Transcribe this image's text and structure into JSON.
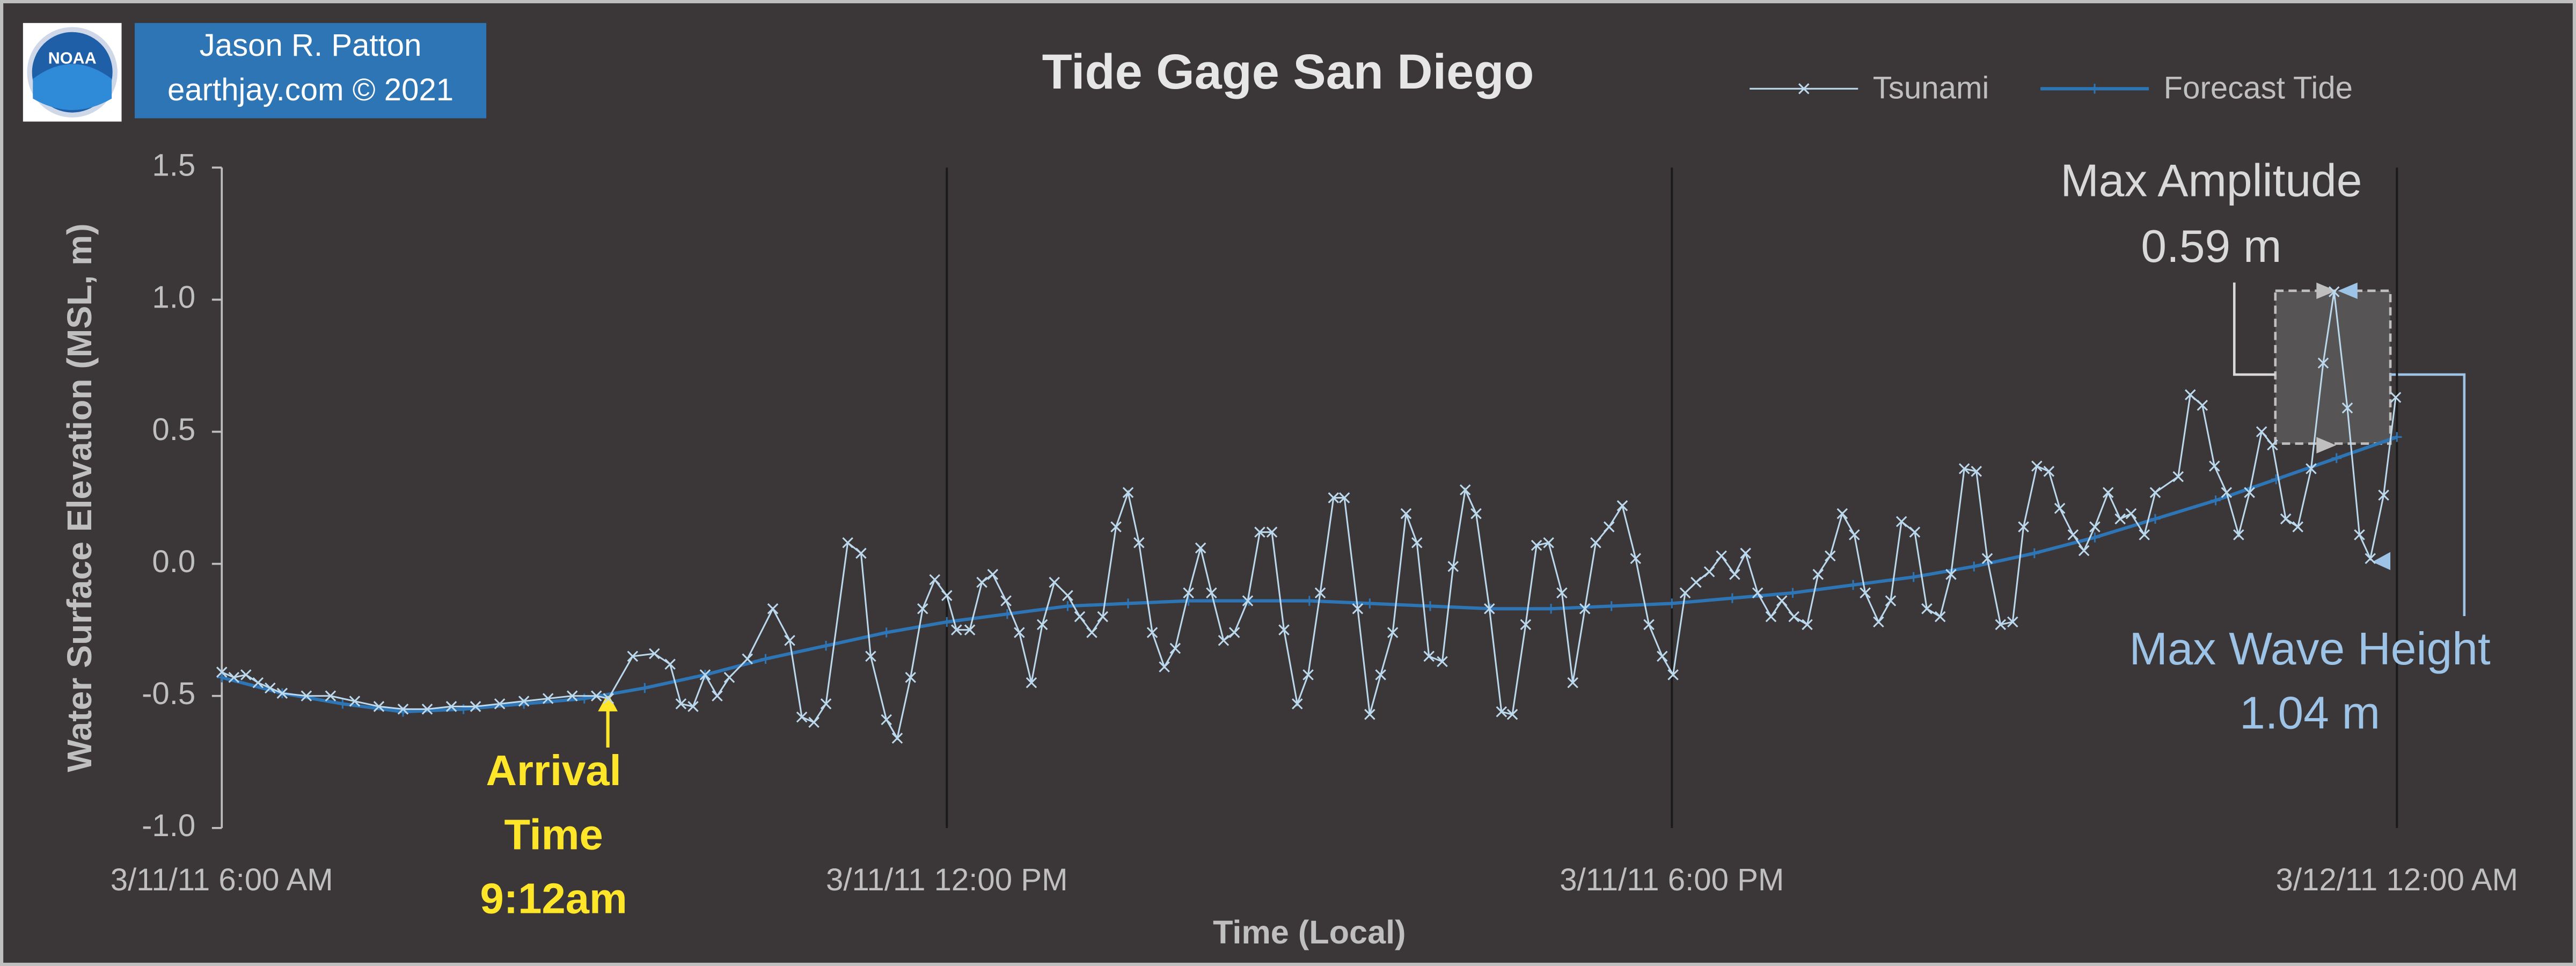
{
  "chart_data": {
    "type": "line",
    "title": "Tide Gage San Diego",
    "credit": [
      "Jason R. Patton",
      "earthjay.com © 2021"
    ],
    "logo": "NOAA",
    "xlabel": "Time (Local)",
    "ylabel": "Water Surface Elevation (MSL, m)",
    "xlim": [
      6,
      24
    ],
    "xticks": [
      {
        "value": 6,
        "label": "3/11/11 6:00 AM"
      },
      {
        "value": 12,
        "label": "3/11/11 12:00 PM"
      },
      {
        "value": 18,
        "label": "3/11/11 6:00 PM"
      },
      {
        "value": 24,
        "label": "3/12/11 12:00 AM"
      }
    ],
    "ylim": [
      -1.0,
      1.5
    ],
    "yticks": [
      {
        "value": -1.0,
        "label": "-1.0"
      },
      -0.5,
      {
        "value": 0,
        "label": "0.0"
      },
      0.5,
      {
        "value": 1.0,
        "label": "1.0"
      },
      1.5
    ],
    "grid": true,
    "series": [
      {
        "name": "Tsunami",
        "color": "#bcd8ec",
        "marker": "x",
        "x": [
          6.0,
          6.1,
          6.2,
          6.3,
          6.4,
          6.5,
          6.7,
          6.9,
          7.1,
          7.3,
          7.5,
          7.7,
          7.9,
          8.1,
          8.3,
          8.5,
          8.7,
          8.9,
          9.1,
          9.2,
          9.4,
          9.58,
          9.71,
          9.8,
          9.9,
          10.0,
          10.1,
          10.2,
          10.35,
          10.56,
          10.7,
          10.8,
          10.9,
          11.0,
          11.18,
          11.29,
          11.37,
          11.5,
          11.59,
          11.7,
          11.8,
          11.9,
          12.0,
          12.08,
          12.19,
          12.29,
          12.38,
          12.49,
          12.6,
          12.7,
          12.79,
          12.89,
          13.0,
          13.1,
          13.2,
          13.29,
          13.4,
          13.5,
          13.59,
          13.7,
          13.8,
          13.89,
          14.0,
          14.1,
          14.19,
          14.29,
          14.38,
          14.49,
          14.59,
          14.69,
          14.79,
          14.9,
          14.99,
          15.09,
          15.2,
          15.29,
          15.4,
          15.5,
          15.59,
          15.69,
          15.8,
          15.89,
          15.99,
          16.1,
          16.19,
          16.29,
          16.38,
          16.49,
          16.59,
          16.68,
          16.79,
          16.88,
          16.98,
          17.09,
          17.18,
          17.28,
          17.37,
          17.48,
          17.59,
          17.7,
          17.81,
          17.92,
          18.01,
          18.11,
          18.2,
          18.31,
          18.41,
          18.52,
          18.61,
          18.71,
          18.82,
          18.91,
          19.01,
          19.12,
          19.21,
          19.31,
          19.41,
          19.51,
          19.6,
          19.71,
          19.81,
          19.9,
          20.01,
          20.11,
          20.22,
          20.31,
          20.42,
          20.52,
          20.61,
          20.72,
          20.82,
          20.91,
          21.02,
          21.12,
          21.21,
          21.32,
          21.41,
          21.5,
          21.61,
          21.71,
          21.8,
          21.91,
          22.0,
          22.19,
          22.29,
          22.39,
          22.49,
          22.59,
          22.69,
          22.78,
          22.88,
          22.97,
          23.08,
          23.18,
          23.29,
          23.39,
          23.48,
          23.59,
          23.69,
          23.78,
          23.89,
          23.99
        ],
        "values": [
          -0.41,
          -0.43,
          -0.42,
          -0.45,
          -0.47,
          -0.49,
          -0.5,
          -0.5,
          -0.52,
          -0.54,
          -0.55,
          -0.55,
          -0.54,
          -0.54,
          -0.53,
          -0.52,
          -0.51,
          -0.5,
          -0.5,
          -0.51,
          -0.35,
          -0.34,
          -0.38,
          -0.53,
          -0.54,
          -0.42,
          -0.5,
          -0.43,
          -0.36,
          -0.17,
          -0.29,
          -0.58,
          -0.6,
          -0.53,
          0.08,
          0.04,
          -0.35,
          -0.59,
          -0.66,
          -0.43,
          -0.17,
          -0.06,
          -0.12,
          -0.25,
          -0.25,
          -0.07,
          -0.04,
          -0.14,
          -0.26,
          -0.45,
          -0.23,
          -0.07,
          -0.12,
          -0.2,
          -0.26,
          -0.2,
          0.14,
          0.27,
          0.08,
          -0.26,
          -0.39,
          -0.32,
          -0.11,
          0.06,
          -0.11,
          -0.29,
          -0.26,
          -0.14,
          0.12,
          0.12,
          -0.25,
          -0.53,
          -0.42,
          -0.11,
          0.25,
          0.25,
          -0.17,
          -0.57,
          -0.42,
          -0.26,
          0.19,
          0.08,
          -0.35,
          -0.37,
          -0.01,
          0.28,
          0.19,
          -0.17,
          -0.56,
          -0.57,
          -0.23,
          0.07,
          0.08,
          -0.11,
          -0.45,
          -0.17,
          0.08,
          0.14,
          0.22,
          0.02,
          -0.23,
          -0.35,
          -0.42,
          -0.11,
          -0.07,
          -0.03,
          0.03,
          -0.04,
          0.04,
          -0.11,
          -0.2,
          -0.14,
          -0.2,
          -0.23,
          -0.04,
          0.03,
          0.19,
          0.11,
          -0.11,
          -0.22,
          -0.14,
          0.16,
          0.12,
          -0.17,
          -0.2,
          -0.04,
          0.36,
          0.35,
          0.02,
          -0.23,
          -0.22,
          0.14,
          0.37,
          0.35,
          0.21,
          0.11,
          0.05,
          0.14,
          0.27,
          0.17,
          0.19,
          0.11,
          0.27,
          0.33,
          0.64,
          0.6,
          0.37,
          0.27,
          0.11,
          0.27,
          0.5,
          0.45,
          0.17,
          0.14,
          0.36,
          0.76,
          1.03,
          0.59,
          0.11,
          0.02,
          0.26,
          0.63
        ]
      },
      {
        "name": "Forecast Tide",
        "color": "#2e75b6",
        "marker": "+",
        "x": [
          6.0,
          6.5,
          7.0,
          7.5,
          8.0,
          8.5,
          9.0,
          9.5,
          10.0,
          10.5,
          11.0,
          11.5,
          12.0,
          12.5,
          13.0,
          13.5,
          14.0,
          14.5,
          15.0,
          15.5,
          16.0,
          16.5,
          17.0,
          17.5,
          18.0,
          18.5,
          19.0,
          19.5,
          20.0,
          20.5,
          21.0,
          21.5,
          22.0,
          22.5,
          23.0,
          23.5,
          24.0
        ],
        "values": [
          -0.43,
          -0.49,
          -0.53,
          -0.56,
          -0.55,
          -0.53,
          -0.51,
          -0.47,
          -0.42,
          -0.36,
          -0.31,
          -0.26,
          -0.22,
          -0.19,
          -0.16,
          -0.15,
          -0.14,
          -0.14,
          -0.14,
          -0.15,
          -0.16,
          -0.17,
          -0.17,
          -0.16,
          -0.15,
          -0.13,
          -0.11,
          -0.08,
          -0.05,
          -0.01,
          0.04,
          0.1,
          0.17,
          0.24,
          0.32,
          0.4,
          0.48
        ]
      }
    ],
    "annotations": [
      {
        "lines": [
          "Arrival",
          "Time",
          "9:12am"
        ],
        "color": "#ffe629"
      },
      {
        "lines": [
          "Max Amplitude",
          "0.59 m"
        ],
        "color": "#d9d9d9"
      },
      {
        "lines": [
          "Max Wave Height",
          "1.04 m"
        ],
        "color": "#9dc3e6"
      }
    ]
  }
}
